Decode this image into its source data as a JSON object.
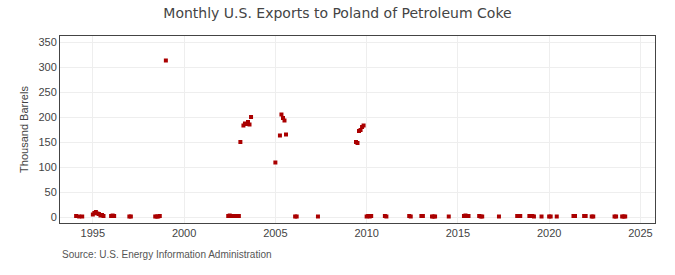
{
  "chart_data": {
    "type": "scatter",
    "title": "Monthly U.S. Exports to Poland of Petroleum Coke",
    "ylabel": "Thousand Barrels",
    "source": "Source: U.S. Energy Information Administration",
    "color": "#aa0000",
    "marker": "square",
    "grid": true,
    "xlim": [
      1993.2,
      2025.8
    ],
    "ylim": [
      -12,
      362
    ],
    "xticks": [
      1995,
      2000,
      2005,
      2010,
      2015,
      2020,
      2025
    ],
    "yticks": [
      0,
      50,
      100,
      150,
      200,
      250,
      300,
      350
    ],
    "x": [
      1994.083,
      1994.25,
      1994.417,
      1995.0,
      1995.083,
      1995.167,
      1995.25,
      1995.333,
      1995.417,
      1995.5,
      1995.583,
      1996.0,
      1996.083,
      1996.167,
      1997.0,
      1997.083,
      1998.417,
      1998.5,
      1998.583,
      1998.667,
      1999.0,
      2002.417,
      2002.5,
      2002.583,
      2002.667,
      2002.75,
      2002.833,
      2002.917,
      2003.0,
      2003.083,
      2003.25,
      2003.333,
      2003.417,
      2003.5,
      2003.583,
      2003.667,
      2005.0,
      2005.25,
      2005.333,
      2005.417,
      2005.5,
      2005.583,
      2006.083,
      2006.167,
      2007.333,
      2009.417,
      2009.5,
      2009.583,
      2009.667,
      2009.75,
      2009.833,
      2010.0,
      2010.083,
      2010.167,
      2010.25,
      2011.0,
      2011.083,
      2012.333,
      2012.417,
      2013.0,
      2013.083,
      2013.583,
      2013.667,
      2013.75,
      2014.5,
      2015.333,
      2015.417,
      2015.5,
      2015.583,
      2016.167,
      2016.25,
      2016.333,
      2017.25,
      2018.25,
      2018.333,
      2018.417,
      2018.917,
      2019.0,
      2019.083,
      2019.167,
      2019.583,
      2020.0,
      2020.083,
      2020.417,
      2021.333,
      2021.417,
      2021.917,
      2022.0,
      2022.333,
      2022.417,
      2023.583,
      2023.667,
      2024.0,
      2024.083,
      2024.167
    ],
    "values": [
      2,
      1,
      1,
      5,
      8,
      10,
      7,
      6,
      3,
      4,
      2,
      2,
      3,
      2,
      1,
      1,
      1,
      1,
      1,
      2,
      313,
      2,
      3,
      2,
      2,
      2,
      2,
      2,
      2,
      150,
      183,
      187,
      186,
      190,
      185,
      200,
      109,
      163,
      205,
      198,
      193,
      165,
      1,
      1,
      1,
      150,
      148,
      172,
      174,
      180,
      183,
      1,
      2,
      1,
      2,
      2,
      1,
      2,
      1,
      2,
      2,
      1,
      1,
      1,
      1,
      2,
      3,
      2,
      2,
      2,
      1,
      1,
      1,
      2,
      2,
      2,
      2,
      2,
      2,
      1,
      1,
      1,
      1,
      1,
      2,
      2,
      2,
      2,
      1,
      1,
      1,
      1,
      1,
      1,
      1
    ]
  }
}
